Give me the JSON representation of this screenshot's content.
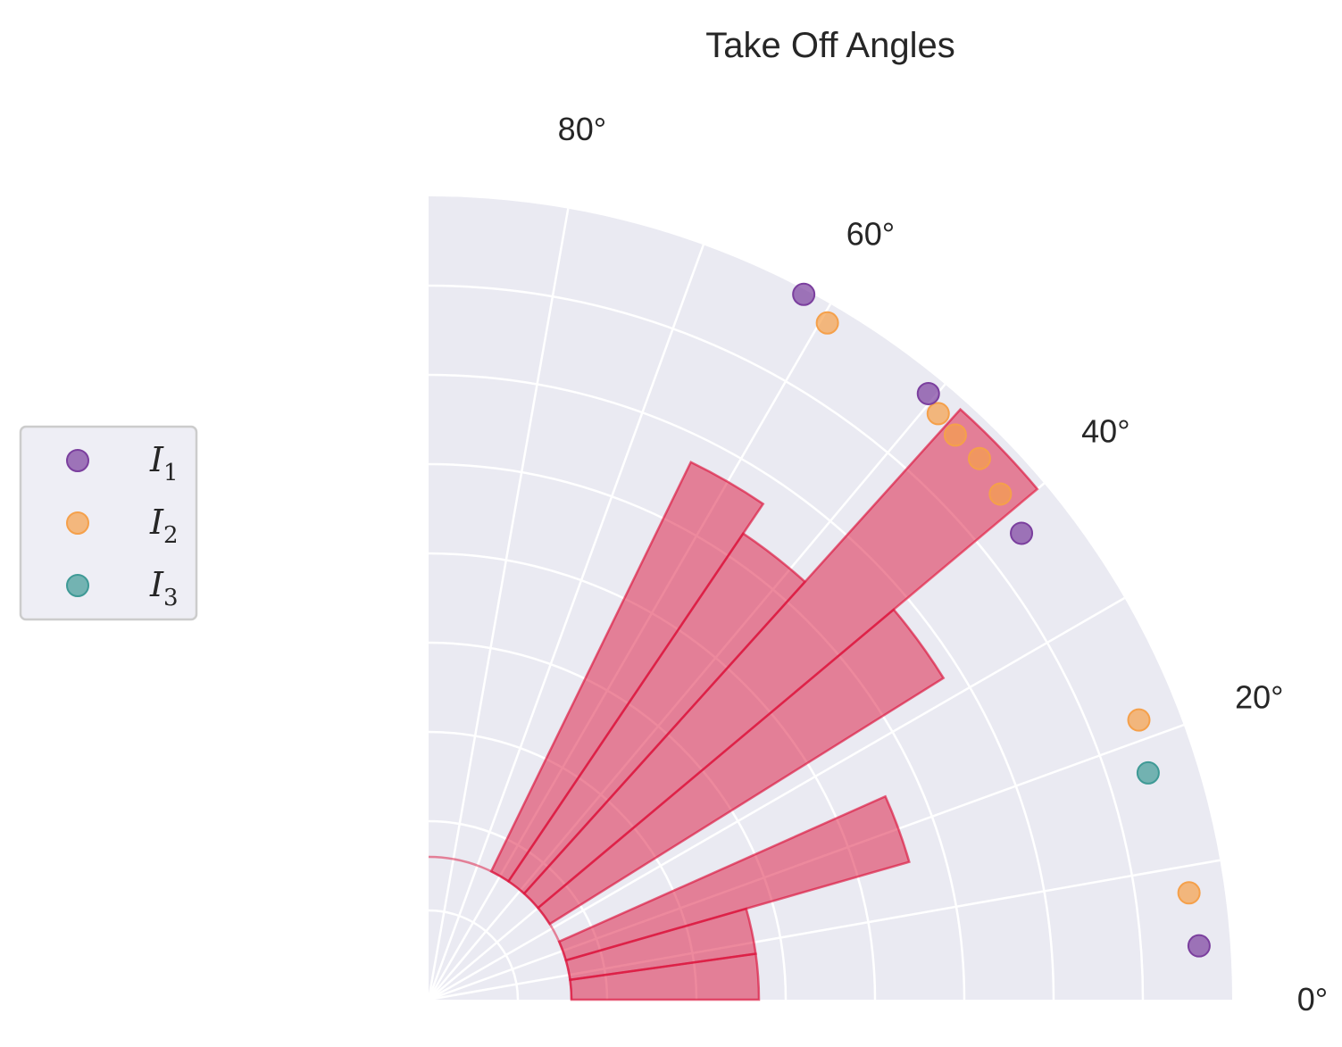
{
  "chart_data": {
    "type": "polar-bar-scatter",
    "title": "Take Off Angles",
    "angle_ticks": [
      "0°",
      "20°",
      "40°",
      "60°",
      "80°"
    ],
    "angle_tick_values": [
      0,
      20,
      40,
      60,
      80
    ],
    "theta_range_deg": [
      0,
      90
    ],
    "r_range": [
      0,
      9
    ],
    "r_origin_offset": 0,
    "grid": true,
    "background_color": "#eaeaf2",
    "legend": {
      "placement": "left",
      "entries": [
        {
          "label": "I",
          "sub": "1",
          "color": "#7b3f9e"
        },
        {
          "label": "I",
          "sub": "2",
          "color": "#f5a04a"
        },
        {
          "label": "I",
          "sub": "3",
          "color": "#3f9a96"
        }
      ]
    },
    "bars": {
      "color": "#dc143c",
      "bin_width_deg": 8,
      "bottom": 1.6,
      "bins": [
        {
          "theta_start": 0,
          "value": 2.1
        },
        {
          "theta_start": 8,
          "value": 2.1
        },
        {
          "theta_start": 16,
          "value": 4.0
        },
        {
          "theta_start": 32,
          "value": 5.2
        },
        {
          "theta_start": 40,
          "value": 7.3
        },
        {
          "theta_start": 48,
          "value": 4.7
        },
        {
          "theta_start": 56,
          "value": 5.1
        }
      ]
    },
    "points": [
      {
        "series": "I1",
        "theta": 4.0,
        "r": 8.65
      },
      {
        "series": "I2",
        "theta": 8.0,
        "r": 8.6
      },
      {
        "series": "I3",
        "theta": 17.5,
        "r": 8.45
      },
      {
        "series": "I2",
        "theta": 21.5,
        "r": 8.55
      },
      {
        "series": "I1",
        "theta": 38.2,
        "r": 8.45
      },
      {
        "series": "I2",
        "theta": 41.5,
        "r": 8.55
      },
      {
        "series": "I2",
        "theta": 44.5,
        "r": 8.65
      },
      {
        "series": "I2",
        "theta": 47.0,
        "r": 8.65
      },
      {
        "series": "I2",
        "theta": 49.0,
        "r": 8.7
      },
      {
        "series": "I1",
        "theta": 50.5,
        "r": 8.8
      },
      {
        "series": "I2",
        "theta": 59.5,
        "r": 8.8
      },
      {
        "series": "I1",
        "theta": 62.0,
        "r": 8.95
      }
    ]
  }
}
